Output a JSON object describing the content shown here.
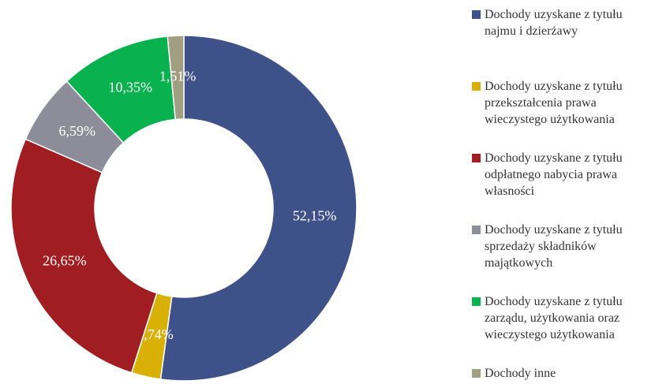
{
  "chart_data": {
    "type": "donut",
    "categories": [
      "Dochody uzyskane z tytułu najmu i dzierżawy",
      "Dochody uzyskane z tytułu przekształcenia prawa wieczystego użytkowania",
      "Dochody uzyskane z tytułu odpłatnego nabycia prawa własności",
      "Dochody uzyskane z tytułu sprzedaży składników majątkowych",
      "Dochody uzyskane z tytułu zarządu, użytkowania oraz wieczystego użytkowania",
      "Dochody inne"
    ],
    "values": [
      52.15,
      2.74,
      26.65,
      6.59,
      10.35,
      1.51
    ],
    "value_labels": [
      "52,15%",
      "2,74%",
      "26,65%",
      "6,59%",
      "10,35%",
      "1,51%"
    ],
    "colors": [
      "#3f5189",
      "#d9b106",
      "#a01e22",
      "#8c8d99",
      "#0ab14f",
      "#a09f82"
    ],
    "legend": "right"
  }
}
